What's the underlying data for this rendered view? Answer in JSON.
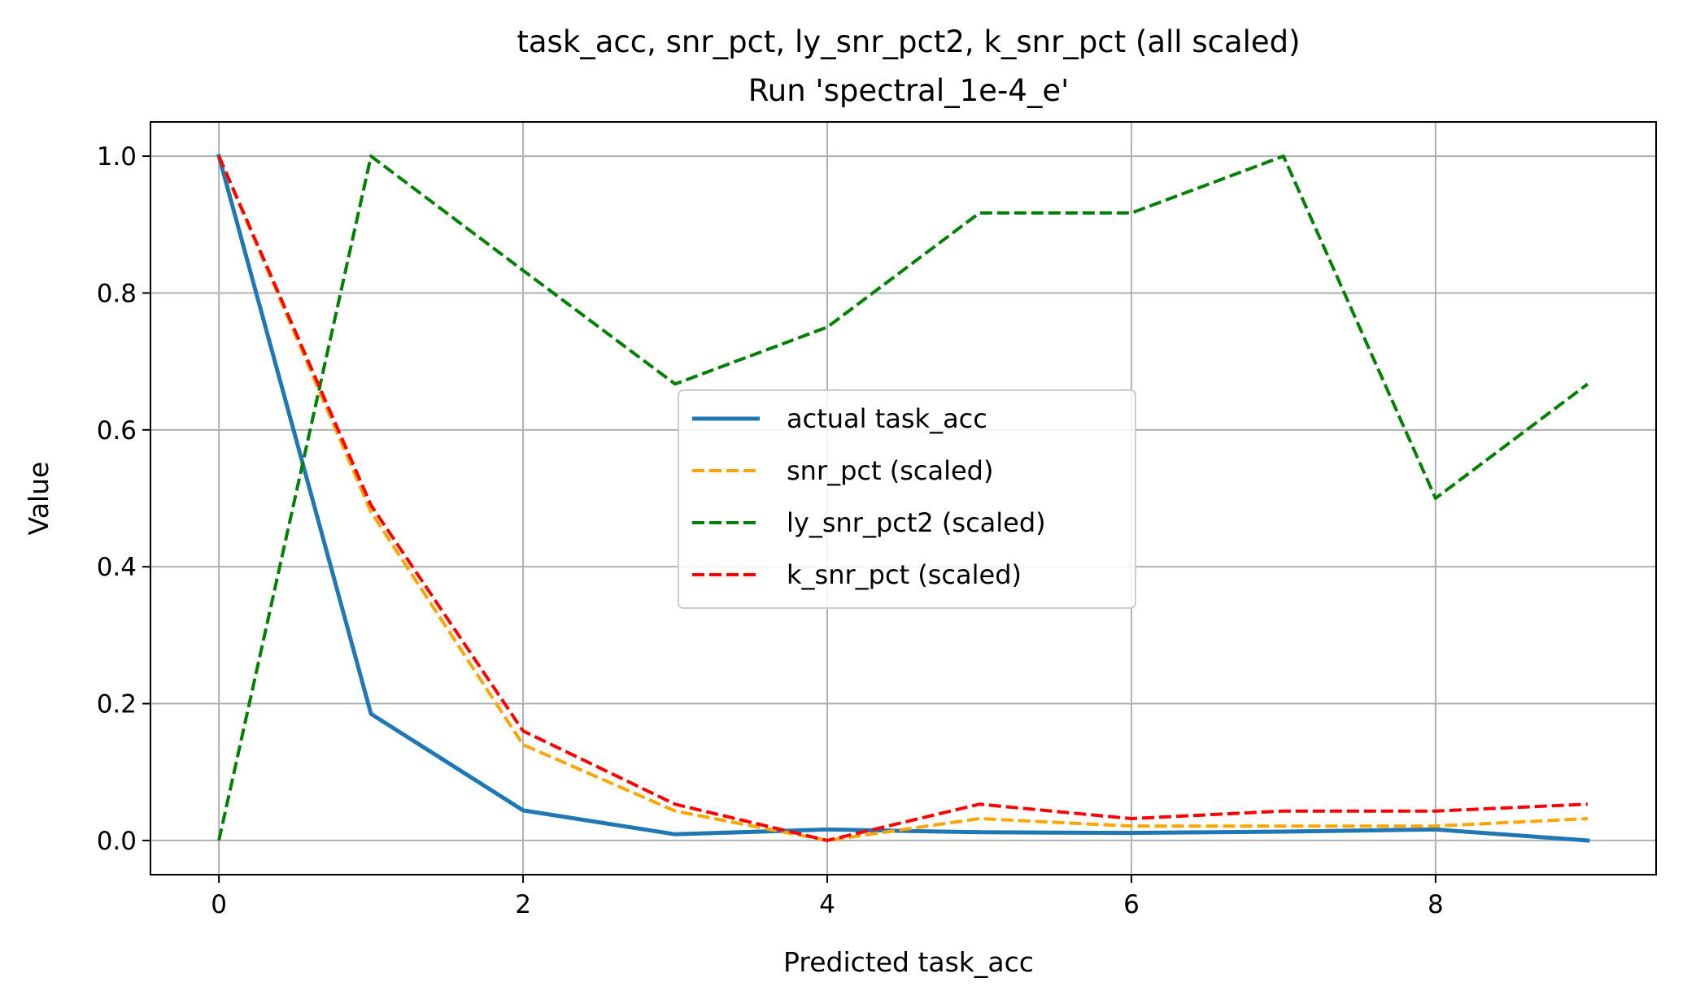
{
  "chart_data": {
    "type": "line",
    "title": "task_acc, snr_pct, ly_snr_pct2, k_snr_pct (all scaled)",
    "subtitle": "Run 'spectral_1e-4_e'",
    "xlabel": "Predicted task_acc",
    "ylabel": "Value",
    "xlim": [
      -0.45,
      9.45
    ],
    "ylim": [
      -0.05,
      1.05
    ],
    "xticks": [
      0,
      2,
      4,
      6,
      8
    ],
    "yticks": [
      0.0,
      0.2,
      0.4,
      0.6,
      0.8,
      1.0
    ],
    "xtick_labels": [
      "0",
      "2",
      "4",
      "6",
      "8"
    ],
    "ytick_labels": [
      "0.0",
      "0.2",
      "0.4",
      "0.6",
      "0.8",
      "1.0"
    ],
    "grid": true,
    "legend_position": "center",
    "x": [
      0,
      1,
      2,
      3,
      4,
      5,
      6,
      7,
      8,
      9
    ],
    "series": [
      {
        "name": "actual task_acc",
        "color": "#1f77b4",
        "style": "solid",
        "values": [
          1.0,
          0.185,
          0.044,
          0.009,
          0.016,
          0.012,
          0.011,
          0.013,
          0.016,
          0.0
        ]
      },
      {
        "name": "snr_pct (scaled)",
        "color": "#ffa500",
        "style": "dashed",
        "values": [
          1.0,
          0.48,
          0.14,
          0.043,
          0.0,
          0.032,
          0.021,
          0.021,
          0.021,
          0.032
        ]
      },
      {
        "name": "ly_snr_pct2 (scaled)",
        "color": "#008000",
        "style": "dashed",
        "values": [
          0.0,
          1.0,
          0.833,
          0.667,
          0.75,
          0.917,
          0.917,
          1.0,
          0.5,
          0.667
        ]
      },
      {
        "name": "k_snr_pct (scaled)",
        "color": "#ff0000",
        "style": "dashed",
        "values": [
          1.0,
          0.49,
          0.16,
          0.053,
          0.0,
          0.053,
          0.032,
          0.043,
          0.043,
          0.053
        ]
      }
    ]
  }
}
